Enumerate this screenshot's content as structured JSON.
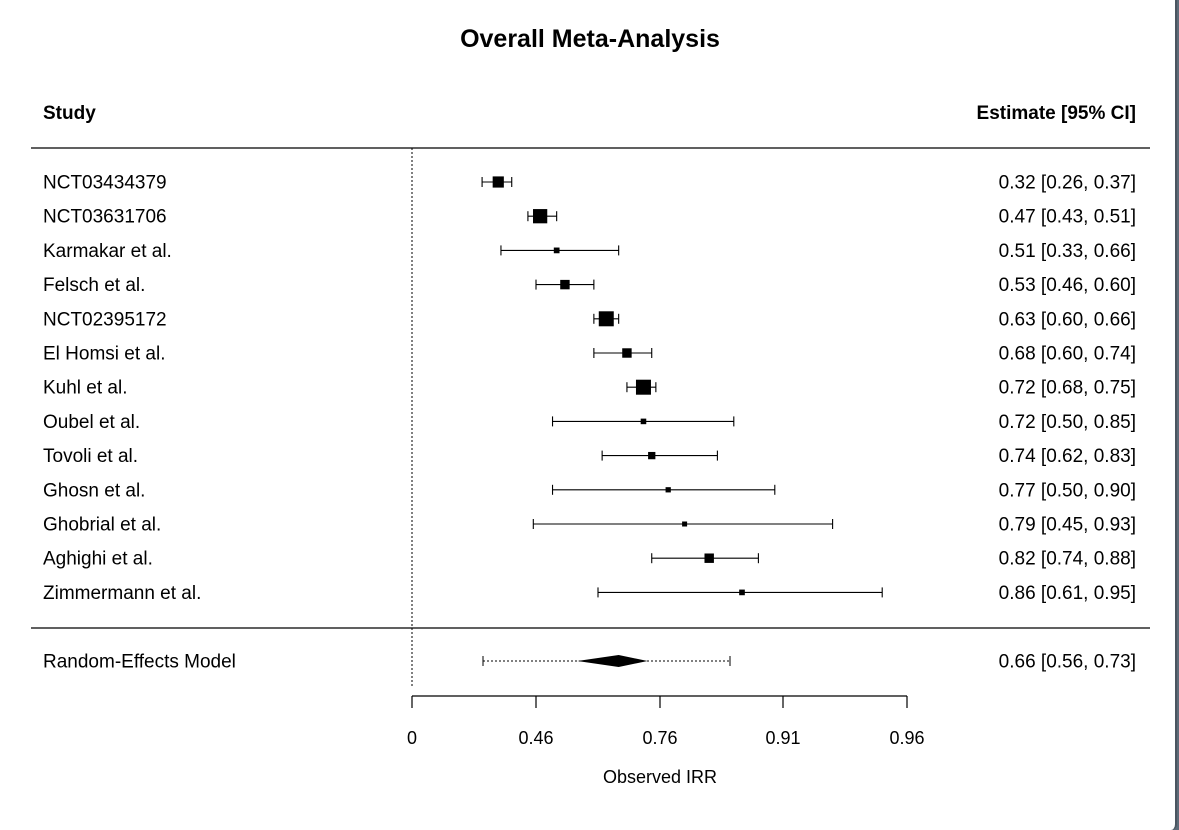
{
  "chart_data": {
    "type": "forest",
    "title": "Overall Meta-Analysis",
    "column_headers": {
      "study": "Study",
      "estimate": "Estimate [95% CI]"
    },
    "xlabel": "Observed IRR",
    "x_ticks": [
      "0",
      "0.46",
      "0.76",
      "0.91",
      "0.96"
    ],
    "reference_line": 0,
    "studies": [
      {
        "name": "NCT03434379",
        "estimate": 0.32,
        "ci_low": 0.26,
        "ci_high": 0.37,
        "label": "0.32 [0.26, 0.37]"
      },
      {
        "name": "NCT03631706",
        "estimate": 0.47,
        "ci_low": 0.43,
        "ci_high": 0.51,
        "label": "0.47 [0.43, 0.51]"
      },
      {
        "name": "Karmakar et al.",
        "estimate": 0.51,
        "ci_low": 0.33,
        "ci_high": 0.66,
        "label": "0.51 [0.33, 0.66]"
      },
      {
        "name": "Felsch et al.",
        "estimate": 0.53,
        "ci_low": 0.46,
        "ci_high": 0.6,
        "label": "0.53 [0.46, 0.60]"
      },
      {
        "name": "NCT02395172",
        "estimate": 0.63,
        "ci_low": 0.6,
        "ci_high": 0.66,
        "label": "0.63 [0.60, 0.66]"
      },
      {
        "name": "El Homsi et al.",
        "estimate": 0.68,
        "ci_low": 0.6,
        "ci_high": 0.74,
        "label": "0.68 [0.60, 0.74]"
      },
      {
        "name": "Kuhl et al.",
        "estimate": 0.72,
        "ci_low": 0.68,
        "ci_high": 0.75,
        "label": "0.72 [0.68, 0.75]"
      },
      {
        "name": "Oubel et al.",
        "estimate": 0.72,
        "ci_low": 0.5,
        "ci_high": 0.85,
        "label": "0.72 [0.50, 0.85]"
      },
      {
        "name": "Tovoli et al.",
        "estimate": 0.74,
        "ci_low": 0.62,
        "ci_high": 0.83,
        "label": "0.74 [0.62, 0.83]"
      },
      {
        "name": "Ghosn et al.",
        "estimate": 0.77,
        "ci_low": 0.5,
        "ci_high": 0.9,
        "label": "0.77 [0.50, 0.90]"
      },
      {
        "name": "Ghobrial et al.",
        "estimate": 0.79,
        "ci_low": 0.45,
        "ci_high": 0.93,
        "label": "0.79 [0.45, 0.93]"
      },
      {
        "name": "Aghighi et al.",
        "estimate": 0.82,
        "ci_low": 0.74,
        "ci_high": 0.88,
        "label": "0.82 [0.74, 0.88]"
      },
      {
        "name": "Zimmermann et al.",
        "estimate": 0.86,
        "ci_low": 0.61,
        "ci_high": 0.95,
        "label": "0.86 [0.61, 0.95]"
      }
    ],
    "summary": {
      "name": "Random-Effects Model",
      "estimate": 0.66,
      "ci_low": 0.56,
      "ci_high": 0.73,
      "label": "0.66 [0.56, 0.73]"
    }
  }
}
